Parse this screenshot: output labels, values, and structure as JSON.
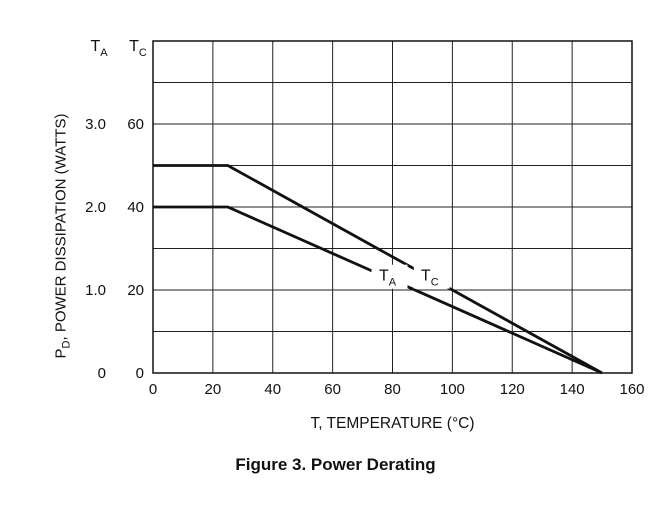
{
  "chart_data": {
    "type": "line",
    "xlabel": "T, TEMPERATURE (°C)",
    "ylabel": "P",
    "ylabel_sub": "D",
    "ylabel_rest": ", POWER DISSIPATION (WATTS)",
    "xlim": [
      0,
      160
    ],
    "x_ticks": [
      "0",
      "20",
      "40",
      "60",
      "80",
      "100",
      "120",
      "140",
      "160"
    ],
    "grid": true,
    "left_axis": {
      "header": "T",
      "header_sub": "A",
      "ylim": [
        0,
        4
      ],
      "ticks": [
        "0",
        "1.0",
        "2.0",
        "3.0"
      ]
    },
    "right_axis": {
      "header": "T",
      "header_sub": "C",
      "ylim": [
        0,
        80
      ],
      "ticks": [
        "0",
        "20",
        "40",
        "60"
      ]
    },
    "series": [
      {
        "name": "T",
        "name_sub": "C",
        "axis": "right",
        "x": [
          0,
          25,
          150
        ],
        "y": [
          50,
          50,
          0
        ]
      },
      {
        "name": "T",
        "name_sub": "A",
        "axis": "left",
        "x": [
          0,
          25,
          150
        ],
        "y": [
          2.0,
          2.0,
          0
        ]
      }
    ]
  },
  "caption": "Figure 3. Power Derating"
}
